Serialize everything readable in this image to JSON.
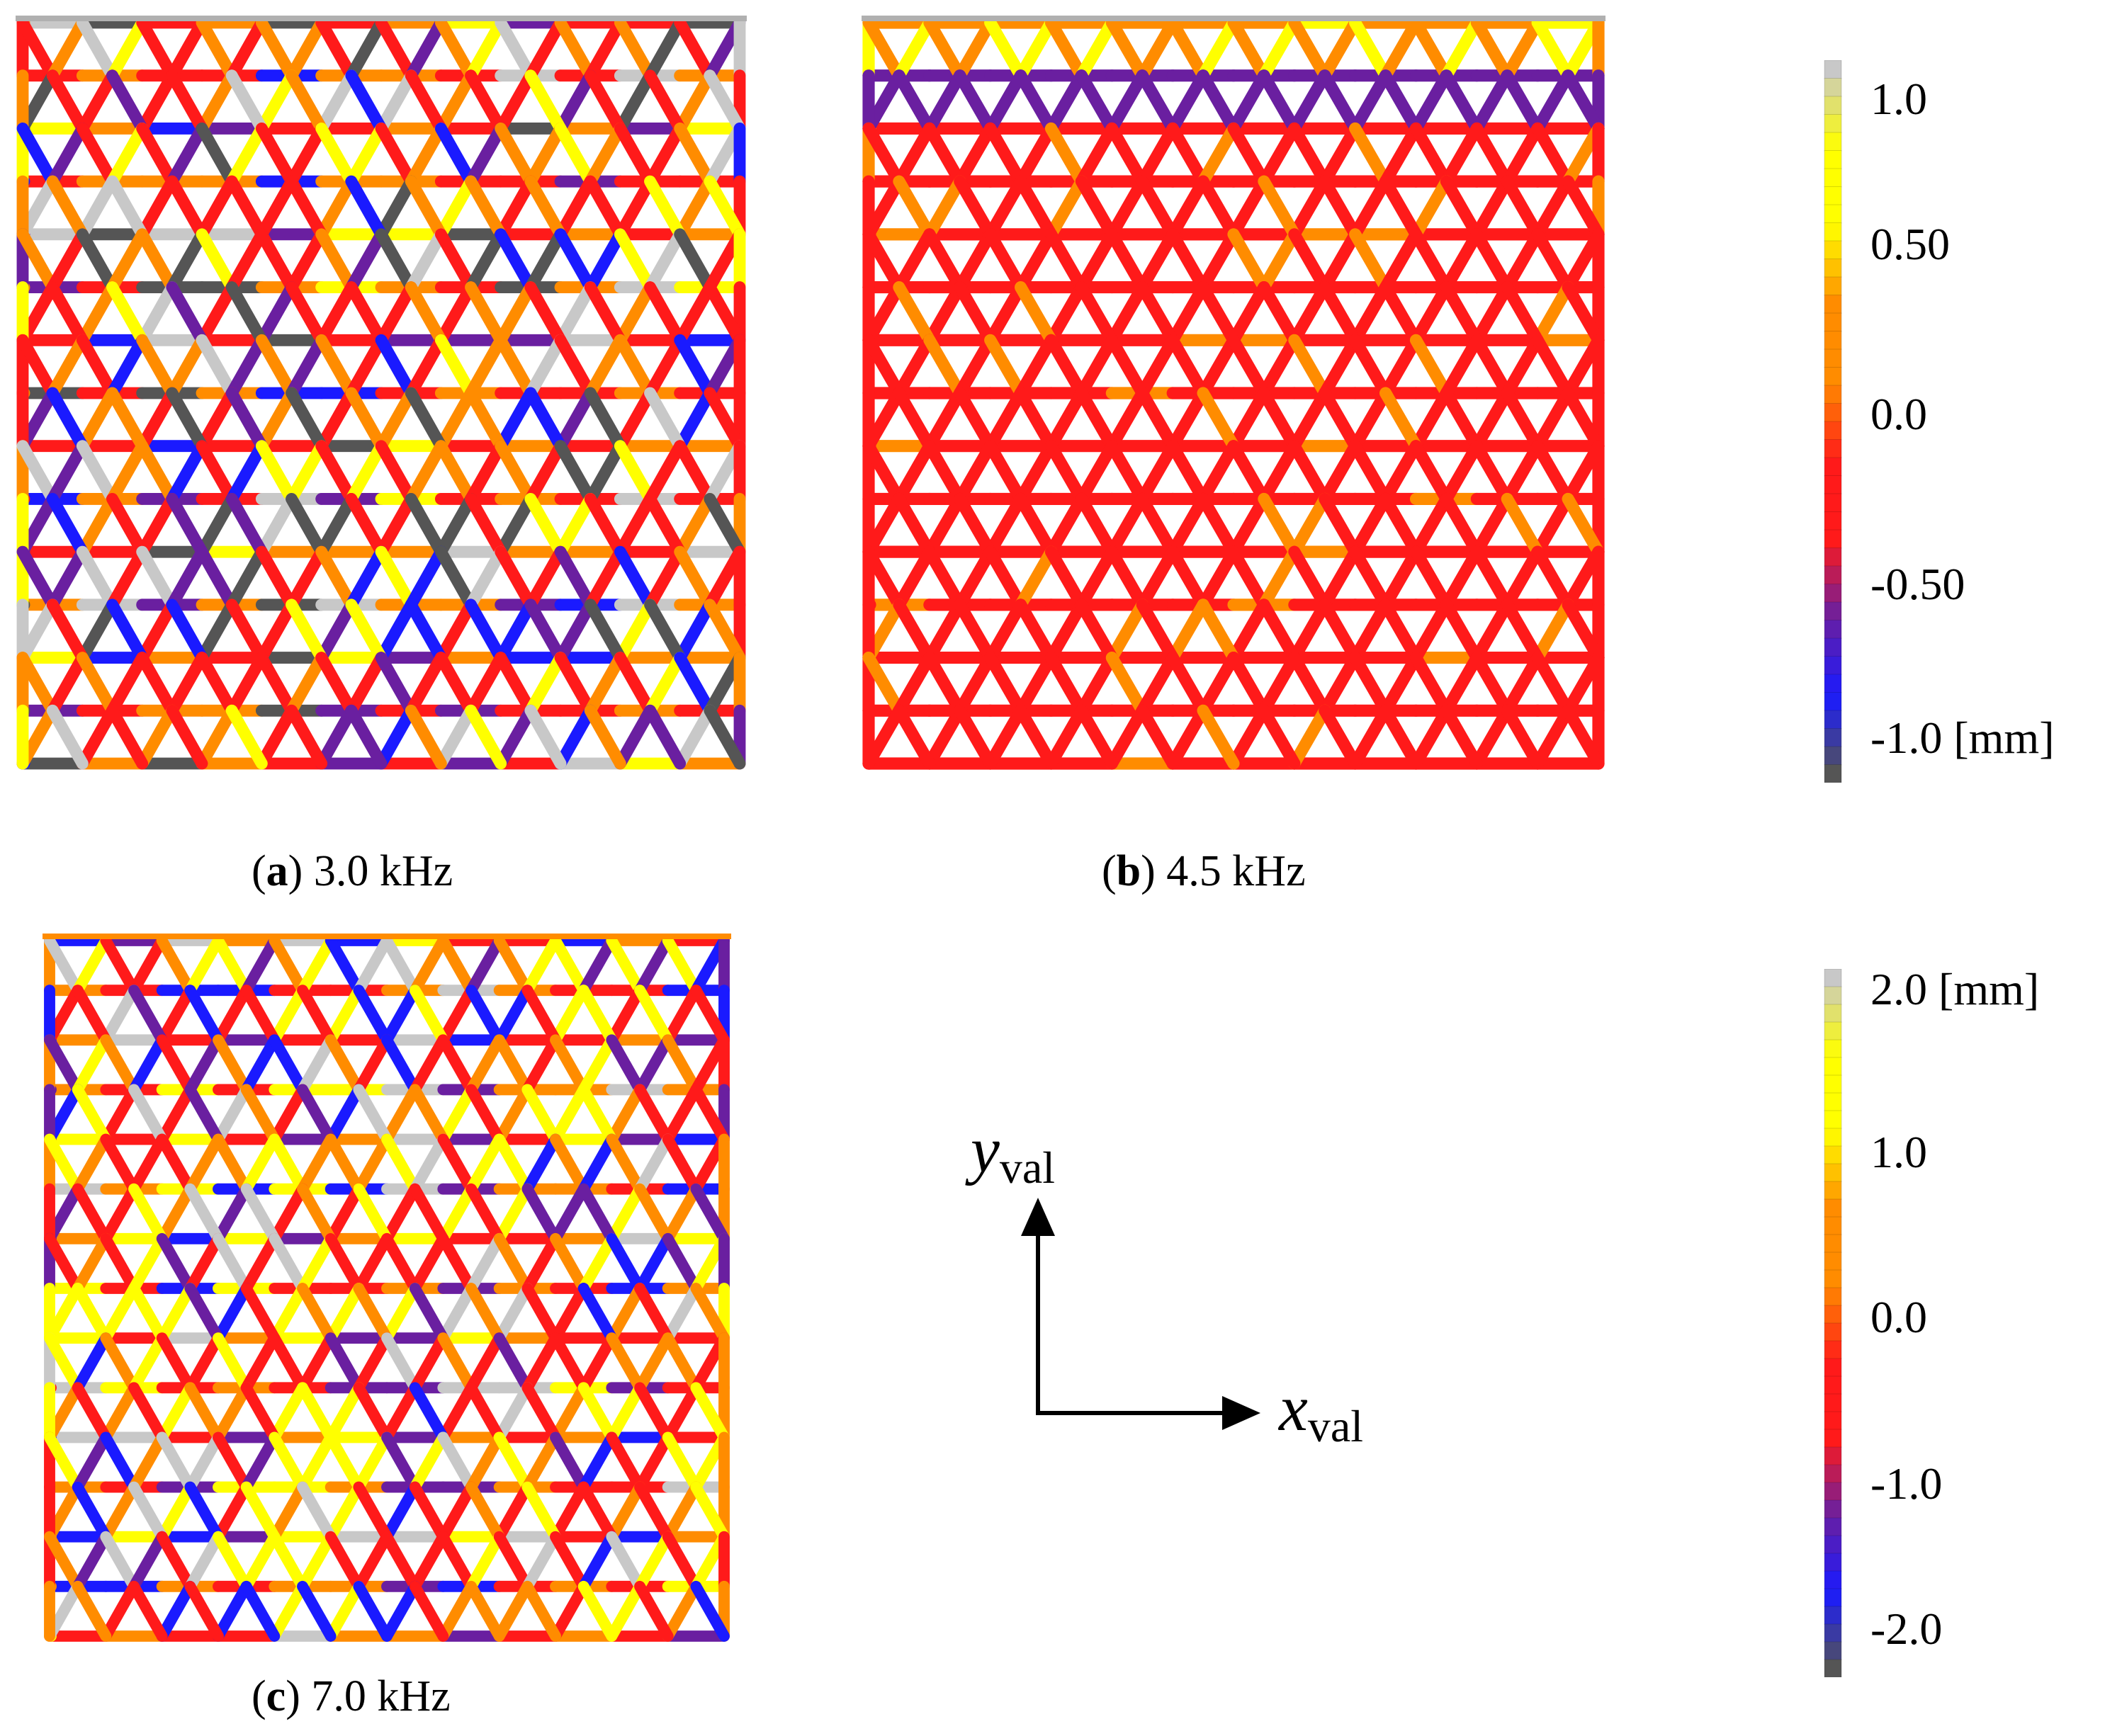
{
  "panels": [
    {
      "id": "a",
      "letter": "a",
      "caption": "3.0 kHz"
    },
    {
      "id": "b",
      "letter": "b",
      "caption": "4.5 kHz"
    },
    {
      "id": "c",
      "letter": "c",
      "caption": "7.0 kHz"
    }
  ],
  "colorbars": [
    {
      "labels": [
        "1.0",
        "0.50",
        "0.0",
        "-0.50",
        "-1.0 [mm]"
      ],
      "colors": {
        "max": "#c8c8c8",
        "high": "#ffff00",
        "mid_high": "#ff8c00",
        "zero": "#ff1a1a",
        "mid_low": "#6a1fa0",
        "low": "#1a1aff",
        "min": "#555555"
      }
    },
    {
      "labels": [
        "2.0 [mm]",
        "1.0",
        "0.0",
        "-1.0",
        "-2.0"
      ],
      "colors": {
        "max": "#c8c8c8",
        "high": "#ffff00",
        "mid_high": "#ff8c00",
        "zero": "#ff1a1a",
        "mid_low": "#6a1fa0",
        "low": "#1a1aff",
        "min": "#555555"
      }
    }
  ],
  "axes": {
    "y_symbol": "y",
    "y_sub": "val",
    "x_symbol": "x",
    "x_sub": "val"
  }
}
